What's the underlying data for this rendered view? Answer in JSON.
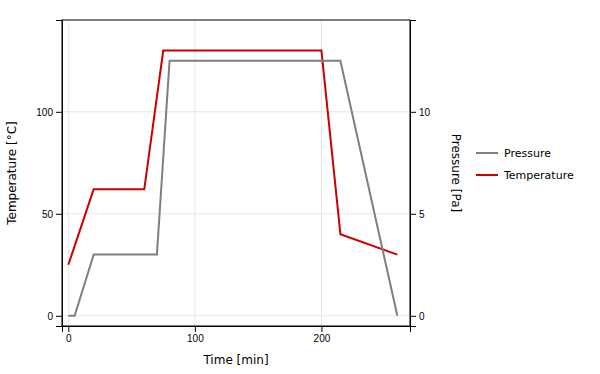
{
  "chart_data": {
    "type": "line",
    "xlabel": "Time [min]",
    "ylabel": "Temperature [°C]",
    "y2label": "Pressure [Pa]",
    "series": [
      {
        "name": "Temperature",
        "color": "#cc0000",
        "x": [
          0,
          20,
          60,
          75,
          200,
          215,
          260
        ],
        "values": [
          25,
          62,
          62,
          130,
          130,
          40,
          30
        ]
      },
      {
        "name": "Pressure",
        "color": "#7f7f7f",
        "axis": "y2",
        "x": [
          0,
          5,
          20,
          70,
          80,
          215,
          260
        ],
        "values": [
          0,
          0,
          3.0,
          3.0,
          12.5,
          12.5,
          0
        ]
      }
    ],
    "xlim": [
      -5,
      270
    ],
    "ylim": [
      -5,
      145
    ],
    "y2lim": [
      -0.5,
      14.5
    ],
    "xticks": [
      0,
      100,
      200
    ],
    "yticks": [
      0,
      50,
      100
    ],
    "y2ticks": [
      0,
      5,
      10
    ],
    "grid": true,
    "legend": "right"
  }
}
